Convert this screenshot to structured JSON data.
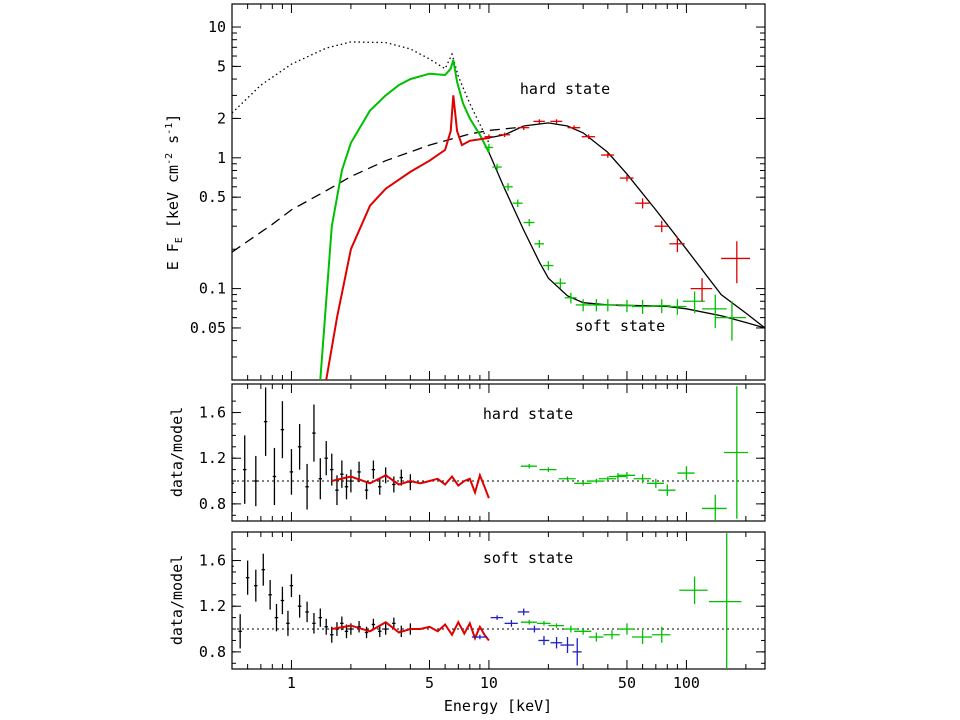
{
  "chart_data": [
    {
      "type": "line",
      "panel": "top",
      "xlabel": "Energy [keV]",
      "ylabel": "E F_E [keV cm^-2 s^-1]",
      "ylabel_main": "E F",
      "ylabel_sub": "E",
      "ylabel_rest": " [keV cm",
      "ylabel_sup1": "-2",
      "ylabel_mid": " s",
      "ylabel_sup2": "-1",
      "ylabel_end": "]",
      "xscale": "log",
      "yscale": "log",
      "xlim": [
        0.5,
        250
      ],
      "ylim": [
        0.02,
        15
      ],
      "yticks": [
        {
          "value": 0.05,
          "label": "0.05"
        },
        {
          "value": 0.1,
          "label": "0.1"
        },
        {
          "value": 0.5,
          "label": "0.5"
        },
        {
          "value": 1,
          "label": "1"
        },
        {
          "value": 2,
          "label": "2"
        },
        {
          "value": 5,
          "label": "5"
        },
        {
          "value": 10,
          "label": "10"
        }
      ],
      "annotations": [
        {
          "text": "hard state",
          "x": 40,
          "y": 2.9
        },
        {
          "text": "soft state",
          "x": 45,
          "y": 0.033
        }
      ],
      "series": [
        {
          "style": "dotted",
          "color": "#000000",
          "x": [
            0.5,
            0.7,
            1.0,
            1.5,
            2.0,
            3.0,
            4.0,
            5.0,
            6.0,
            6.5,
            7.0,
            8.0,
            10.0
          ],
          "y": [
            2.2,
            3.6,
            5.2,
            6.9,
            7.7,
            7.6,
            6.8,
            5.7,
            4.8,
            6.2,
            4.2,
            2.6,
            1.3
          ]
        },
        {
          "style": "dashed",
          "color": "#000000",
          "x": [
            0.5,
            0.8,
            1.0,
            1.5,
            2.0,
            3.0,
            5.0,
            8.0,
            10.0,
            15.0
          ],
          "y": [
            0.19,
            0.31,
            0.4,
            0.56,
            0.72,
            0.95,
            1.25,
            1.52,
            1.62,
            1.72
          ]
        },
        {
          "style": "solid",
          "color": "#000000",
          "x": [
            1.5,
            1.7,
            2.0,
            2.5,
            3.0,
            4.0,
            5.0,
            6.0,
            6.4,
            6.6,
            6.9,
            7.3,
            8.0,
            10.0,
            12.0,
            15.0,
            20.0,
            25.0,
            30.0,
            40.0,
            50.0,
            70.0,
            100.0,
            150.0,
            200.0,
            250.0
          ],
          "y": [
            0.02,
            0.06,
            0.2,
            0.43,
            0.58,
            0.78,
            0.95,
            1.15,
            1.6,
            3.0,
            1.6,
            1.25,
            1.35,
            1.42,
            1.5,
            1.75,
            1.85,
            1.75,
            1.55,
            1.1,
            0.75,
            0.4,
            0.2,
            0.09,
            0.065,
            0.05
          ]
        },
        {
          "style": "solid",
          "color": "#000000",
          "x": [
            1.4,
            1.6,
            1.8,
            2.0,
            2.5,
            3.0,
            3.5,
            4.0,
            5.0,
            6.0,
            6.4,
            6.6,
            6.9,
            7.4,
            8.0,
            9.0,
            10.0,
            12.0,
            15.0,
            18.0,
            20.0,
            25.0,
            30.0,
            40.0,
            60.0,
            80.0,
            100.0,
            150.0,
            200.0,
            250.0
          ],
          "y": [
            0.02,
            0.3,
            0.8,
            1.3,
            2.3,
            3.0,
            3.6,
            4.0,
            4.4,
            4.3,
            4.8,
            5.6,
            3.8,
            2.6,
            2.0,
            1.5,
            1.1,
            0.58,
            0.28,
            0.16,
            0.12,
            0.088,
            0.078,
            0.075,
            0.074,
            0.073,
            0.07,
            0.062,
            0.055,
            0.05
          ]
        },
        {
          "style": "solid",
          "color": "#00c000",
          "x": [
            1.4,
            1.6,
            1.8,
            2.0,
            2.5,
            3.0,
            3.5,
            4.0,
            5.0,
            6.0,
            6.4,
            6.6,
            6.9,
            7.4,
            8.0,
            9.0,
            10.0
          ],
          "y": [
            0.02,
            0.3,
            0.8,
            1.3,
            2.3,
            3.0,
            3.6,
            4.0,
            4.4,
            4.3,
            4.8,
            5.6,
            3.8,
            2.6,
            2.0,
            1.5,
            1.1
          ]
        },
        {
          "style": "solid",
          "color": "#e00000",
          "x": [
            1.5,
            1.7,
            2.0,
            2.5,
            3.0,
            4.0,
            5.0,
            6.0,
            6.4,
            6.6,
            6.9,
            7.3,
            8.0,
            10.0
          ],
          "y": [
            0.02,
            0.06,
            0.2,
            0.43,
            0.58,
            0.78,
            0.95,
            1.15,
            1.6,
            3.0,
            1.6,
            1.25,
            1.35,
            1.42
          ]
        },
        {
          "style": "points",
          "color": "#00c000",
          "x": [
            10,
            11,
            12.5,
            14,
            16,
            18,
            20,
            23,
            26,
            30,
            35,
            40,
            50,
            60,
            75,
            90,
            110,
            140,
            170
          ],
          "y": [
            1.2,
            0.85,
            0.6,
            0.45,
            0.32,
            0.22,
            0.15,
            0.11,
            0.085,
            0.075,
            0.075,
            0.075,
            0.074,
            0.073,
            0.074,
            0.073,
            0.08,
            0.07,
            0.06
          ],
          "xerr": [
            0.5,
            0.6,
            0.7,
            0.8,
            1,
            1,
            1.2,
            1.5,
            1.8,
            2.5,
            3,
            4,
            5,
            7,
            8,
            10,
            14,
            20,
            30
          ],
          "yerr": [
            0.08,
            0.05,
            0.04,
            0.03,
            0.02,
            0.015,
            0.012,
            0.01,
            0.008,
            0.008,
            0.008,
            0.008,
            0.008,
            0.009,
            0.009,
            0.01,
            0.015,
            0.02,
            0.02
          ]
        },
        {
          "style": "points",
          "color": "#e00000",
          "x": [
            10,
            12,
            15,
            18,
            22,
            27,
            32,
            40,
            50,
            60,
            75,
            90,
            120,
            180
          ],
          "y": [
            1.45,
            1.5,
            1.7,
            1.9,
            1.9,
            1.7,
            1.45,
            1.05,
            0.7,
            0.45,
            0.3,
            0.22,
            0.1,
            0.17
          ],
          "xerr": [
            0.5,
            0.8,
            1,
            1.2,
            1.5,
            2,
            2.5,
            3,
            4,
            5,
            6,
            8,
            15,
            30
          ],
          "yerr": [
            0.06,
            0.06,
            0.07,
            0.07,
            0.07,
            0.07,
            0.06,
            0.05,
            0.04,
            0.04,
            0.03,
            0.03,
            0.02,
            0.06
          ]
        }
      ]
    },
    {
      "type": "scatter",
      "panel": "middle",
      "xlabel": "",
      "ylabel": "data/model",
      "xscale": "log",
      "xlim": [
        0.5,
        250
      ],
      "ylim": [
        0.65,
        1.85
      ],
      "yticks": [
        {
          "value": 0.8,
          "label": "0.8"
        },
        {
          "value": 1.2,
          "label": "1.2"
        },
        {
          "value": 1.6,
          "label": "1.6"
        }
      ],
      "reference_line": 1.0,
      "annotation": {
        "text": "hard state",
        "x": 30,
        "y": 1.62
      },
      "series": [
        {
          "color": "#000000",
          "style": "points",
          "x": [
            0.5,
            0.58,
            0.66,
            0.74,
            0.82,
            0.9,
            1.0,
            1.1,
            1.2,
            1.3,
            1.4,
            1.5,
            1.6,
            1.7,
            1.8,
            1.9,
            2.0,
            2.2,
            2.4,
            2.6,
            2.8,
            3.0,
            3.3,
            3.6,
            4.0
          ],
          "y": [
            0.98,
            1.1,
            1.0,
            1.52,
            1.04,
            1.45,
            1.08,
            1.3,
            0.95,
            1.42,
            1.02,
            1.2,
            1.1,
            0.92,
            1.06,
            0.95,
            1.0,
            1.08,
            0.92,
            1.1,
            0.95,
            1.05,
            0.97,
            1.03,
            0.99
          ],
          "yerr": [
            0.25,
            0.3,
            0.22,
            0.3,
            0.25,
            0.25,
            0.2,
            0.2,
            0.2,
            0.25,
            0.18,
            0.15,
            0.14,
            0.13,
            0.12,
            0.11,
            0.1,
            0.09,
            0.08,
            0.08,
            0.07,
            0.07,
            0.07,
            0.07,
            0.07
          ]
        },
        {
          "color": "#e00000",
          "style": "line",
          "x": [
            1.6,
            2.0,
            2.5,
            3.0,
            3.5,
            4.0,
            4.5,
            5.0,
            5.5,
            6.0,
            6.5,
            7.0,
            7.5,
            8.0,
            8.5,
            9.0,
            9.5,
            10.0
          ],
          "y": [
            1.0,
            1.04,
            0.98,
            1.05,
            0.97,
            1.0,
            0.98,
            1.0,
            1.02,
            0.97,
            1.04,
            0.96,
            1.0,
            1.02,
            0.9,
            1.05,
            0.95,
            0.85
          ]
        },
        {
          "color": "#00c000",
          "style": "points",
          "x": [
            16,
            20,
            25,
            30,
            35,
            40,
            45,
            50,
            60,
            70,
            80,
            100,
            140,
            180
          ],
          "y": [
            1.13,
            1.1,
            1.02,
            0.98,
            1.0,
            1.02,
            1.04,
            1.05,
            1.02,
            0.98,
            0.92,
            1.07,
            0.76,
            1.25
          ],
          "xerr": [
            1.5,
            2,
            2.5,
            3,
            3.5,
            4,
            4.5,
            5,
            6,
            7,
            8,
            10,
            20,
            25
          ],
          "yerr": [
            0.02,
            0.02,
            0.02,
            0.02,
            0.02,
            0.02,
            0.03,
            0.03,
            0.04,
            0.04,
            0.05,
            0.06,
            0.12,
            0.58
          ]
        }
      ]
    },
    {
      "type": "scatter",
      "panel": "bottom",
      "xlabel": "Energy [keV]",
      "ylabel": "data/model",
      "xscale": "log",
      "xlim": [
        0.5,
        250
      ],
      "ylim": [
        0.65,
        1.85
      ],
      "xticks": [
        {
          "value": 1,
          "label": "1"
        },
        {
          "value": 5,
          "label": "5"
        },
        {
          "value": 10,
          "label": "10"
        },
        {
          "value": 50,
          "label": "50"
        },
        {
          "value": 100,
          "label": "100"
        }
      ],
      "yticks": [
        {
          "value": 0.8,
          "label": "0.8"
        },
        {
          "value": 1.2,
          "label": "1.2"
        },
        {
          "value": 1.6,
          "label": "1.6"
        }
      ],
      "reference_line": 1.0,
      "annotation": {
        "text": "soft state",
        "x": 30,
        "y": 1.63
      },
      "series": [
        {
          "color": "#000000",
          "style": "points",
          "x": [
            0.5,
            0.55,
            0.6,
            0.66,
            0.72,
            0.78,
            0.84,
            0.9,
            0.96,
            1.0,
            1.1,
            1.2,
            1.3,
            1.4,
            1.5,
            1.6,
            1.7,
            1.8,
            1.9,
            2.0,
            2.2,
            2.4,
            2.6,
            2.8,
            3.0,
            3.3,
            3.6,
            4.0
          ],
          "y": [
            1.55,
            0.98,
            1.45,
            1.38,
            1.52,
            1.3,
            1.1,
            1.25,
            1.05,
            1.38,
            1.2,
            1.15,
            1.05,
            1.1,
            1.02,
            0.95,
            1.0,
            1.05,
            0.98,
            1.0,
            1.02,
            0.97,
            1.04,
            0.98,
            1.0,
            1.05,
            0.98,
            1.0
          ],
          "yerr": [
            0.12,
            0.15,
            0.15,
            0.14,
            0.14,
            0.13,
            0.12,
            0.12,
            0.11,
            0.1,
            0.1,
            0.09,
            0.09,
            0.08,
            0.07,
            0.07,
            0.06,
            0.06,
            0.06,
            0.05,
            0.05,
            0.05,
            0.05,
            0.05,
            0.05,
            0.05,
            0.05,
            0.05
          ]
        },
        {
          "color": "#e00000",
          "style": "line",
          "x": [
            1.6,
            2.0,
            2.5,
            3.0,
            3.5,
            4.0,
            4.5,
            5.0,
            5.5,
            6.0,
            6.5,
            7.0,
            7.5,
            8.0,
            8.5,
            9.0,
            9.5,
            10.0
          ],
          "y": [
            1.0,
            1.03,
            0.98,
            1.06,
            0.97,
            1.0,
            1.0,
            1.02,
            0.98,
            1.04,
            0.95,
            1.06,
            0.96,
            1.05,
            0.92,
            1.02,
            0.95,
            0.9
          ]
        },
        {
          "color": "#2020c0",
          "style": "points",
          "x": [
            9,
            11,
            13,
            15,
            17,
            19,
            22,
            25,
            28
          ],
          "y": [
            0.93,
            1.1,
            1.05,
            1.15,
            1.0,
            0.9,
            0.88,
            0.86,
            0.8
          ],
          "xerr": [
            0.8,
            0.8,
            1,
            1,
            1.2,
            1.2,
            1.5,
            2,
            1.5
          ],
          "yerr": [
            0.02,
            0.02,
            0.03,
            0.03,
            0.03,
            0.04,
            0.05,
            0.07,
            0.12
          ]
        },
        {
          "color": "#00c000",
          "style": "points",
          "x": [
            16,
            19,
            22,
            26,
            30,
            35,
            42,
            50,
            60,
            75,
            110,
            160
          ],
          "y": [
            1.06,
            1.05,
            1.03,
            1.0,
            0.98,
            0.93,
            0.95,
            1.0,
            0.93,
            0.95,
            1.34,
            1.24
          ],
          "xerr": [
            1.5,
            1.5,
            2,
            2,
            3,
            3,
            4,
            5,
            7,
            8,
            18,
            30
          ],
          "yerr": [
            0.02,
            0.02,
            0.02,
            0.03,
            0.03,
            0.04,
            0.04,
            0.05,
            0.06,
            0.07,
            0.12,
            0.6
          ]
        }
      ]
    }
  ]
}
